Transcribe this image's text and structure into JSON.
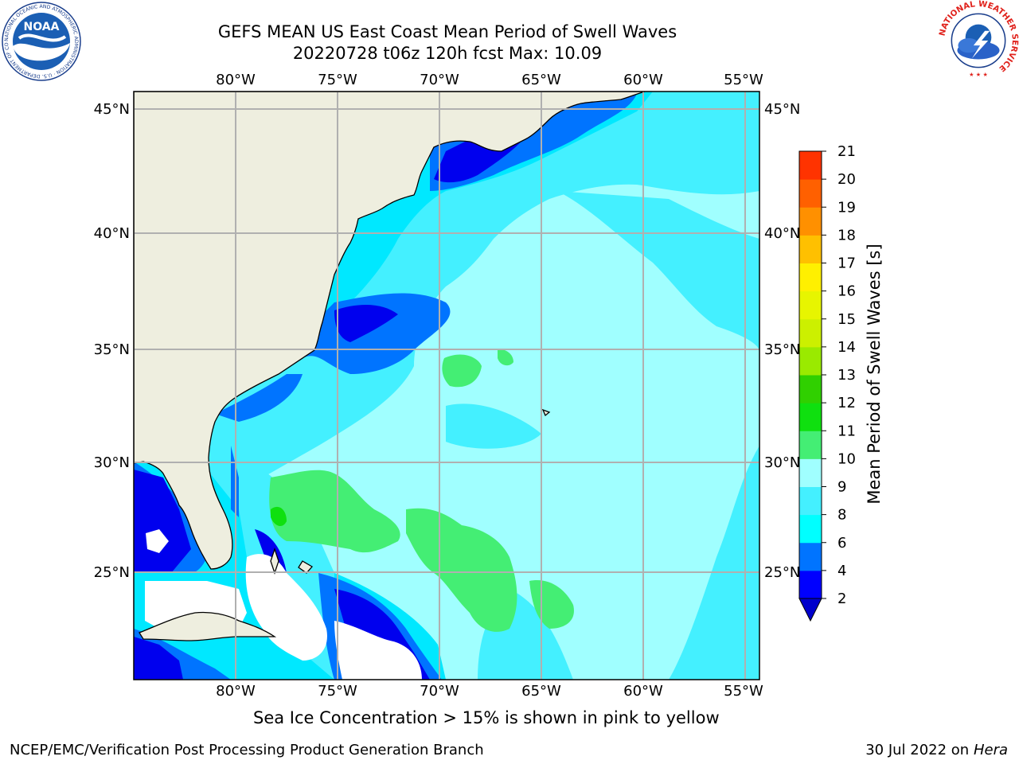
{
  "header": {
    "title_line1": "GEFS MEAN US East Coast Mean Period of Swell Waves",
    "title_line2": "20220728 t06z 120h fcst   Max: 10.09"
  },
  "map": {
    "lon_labels": [
      "80°W",
      "75°W",
      "70°W",
      "65°W",
      "60°W",
      "55°W"
    ],
    "lat_labels": [
      "45°N",
      "40°N",
      "35°N",
      "30°N",
      "25°N"
    ],
    "extent": {
      "lon_min": -84.9,
      "lon_max": -54.6,
      "lat_min": 20.5,
      "lat_max": 45.8
    },
    "colors": {
      "land": "#eeeedf",
      "ocean_0_2": "#ffffff",
      "grid": "#b0b0b0"
    }
  },
  "colorbar": {
    "label": "Mean Period of Swell Waves [s]",
    "ticks": [
      "2",
      "4",
      "6",
      "8",
      "9",
      "10",
      "11",
      "12",
      "13",
      "14",
      "15",
      "16",
      "17",
      "18",
      "19",
      "20",
      "21"
    ],
    "colors": [
      "#0000ff",
      "#0074ff",
      "#00ffff",
      "#44f0ff",
      "#a0ffff",
      "#44ee74",
      "#0fe00f",
      "#30d000",
      "#9aea00",
      "#ccf000",
      "#e7f500",
      "#fff000",
      "#ffc000",
      "#ff9000",
      "#ff6000",
      "#ff3300",
      "#ff0000"
    ],
    "extend_color": "#0000cc"
  },
  "caption": "Sea Ice Concentration > 15% is shown in pink to yellow",
  "footer": {
    "left": "NCEP/EMC/Verification Post Processing Product Generation Branch",
    "date": "30 Jul 2022 on",
    "machine": "Hera"
  },
  "logos": {
    "noaa_text": "NOAA",
    "noaa_ring": "NATIONAL OCEANIC AND ATMOSPHERIC ADMINISTRATION · U.S. DEPARTMENT OF COMMERCE",
    "nws_ring": "NATIONAL WEATHER SERVICE"
  }
}
